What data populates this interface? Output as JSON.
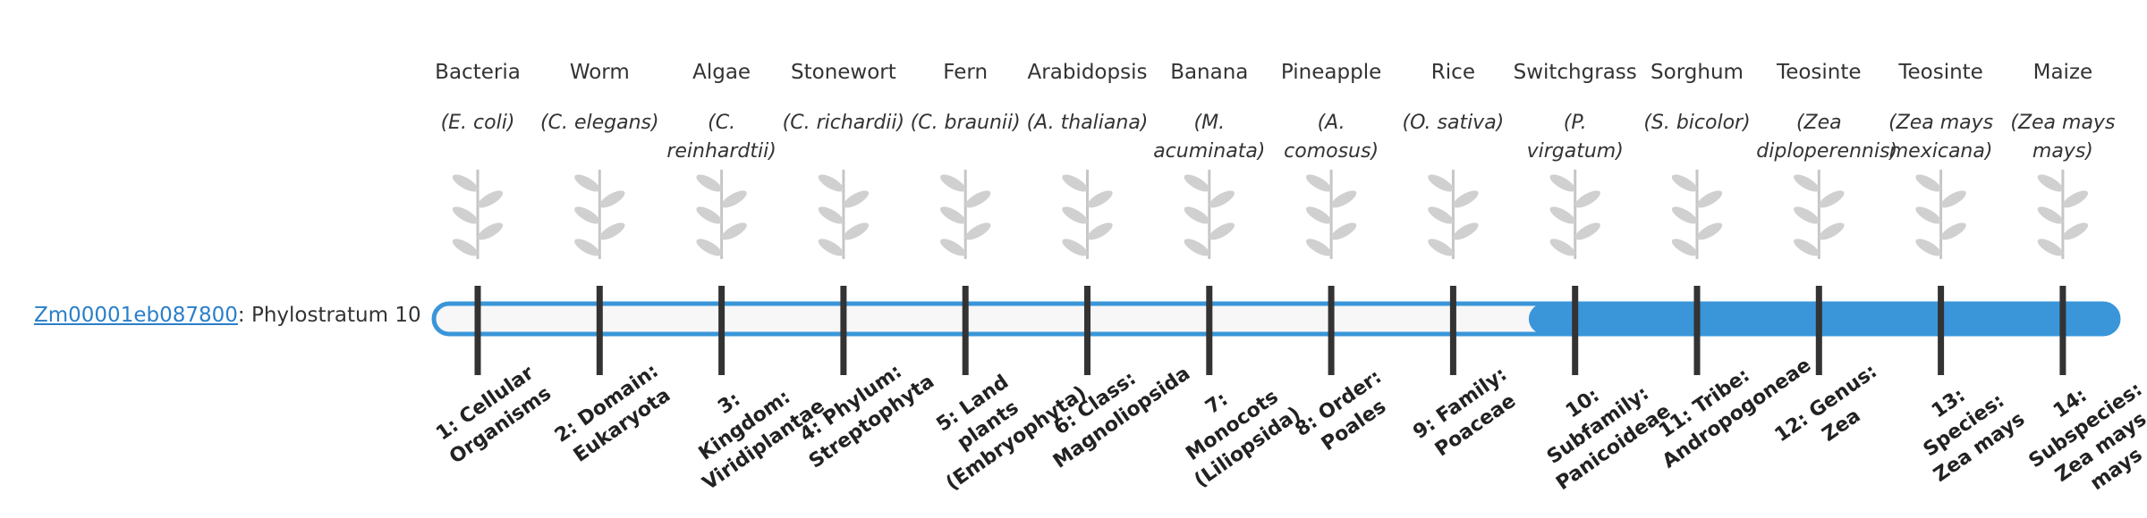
{
  "gene": {
    "id": "Zm00001eb087800",
    "label": ": Phylostratum 10",
    "active_stratum": 10
  },
  "strata": [
    {
      "common": "Bacteria",
      "scientific": "(E. coli)",
      "rank": "1: Cellular Organisms"
    },
    {
      "common": "Worm",
      "scientific": "(C. elegans)",
      "rank": "2: Domain: Eukaryota"
    },
    {
      "common": "Algae",
      "scientific": "(C. reinhardtii)",
      "rank": "3: Kingdom: Viridiplantae"
    },
    {
      "common": "Stonewort",
      "scientific": "(C. richardii)",
      "rank": "4: Phylum: Streptophyta"
    },
    {
      "common": "Fern",
      "scientific": "(C. braunii)",
      "rank": "5: Land plants (Embryophyta)"
    },
    {
      "common": "Arabidopsis",
      "scientific": "(A. thaliana)",
      "rank": "6: Class: Magnoliopsida"
    },
    {
      "common": "Banana",
      "scientific": "(M. acuminata)",
      "rank": "7: Monocots (Liliopsida)"
    },
    {
      "common": "Pineapple",
      "scientific": "(A. comosus)",
      "rank": "8: Order: Poales"
    },
    {
      "common": "Rice",
      "scientific": "(O. sativa)",
      "rank": "9: Family: Poaceae"
    },
    {
      "common": "Switchgrass",
      "scientific": "(P. virgatum)",
      "rank": "10: Subfamily: Panicoideae"
    },
    {
      "common": "Sorghum",
      "scientific": "(S. bicolor)",
      "rank": "11: Tribe: Andropogoneae"
    },
    {
      "common": "Teosinte",
      "scientific": "(Zea diploperennis)",
      "rank": "12: Genus: Zea"
    },
    {
      "common": "Teosinte",
      "scientific": "(Zea mays mexicana)",
      "rank": "13: Species: Zea mays"
    },
    {
      "common": "Maize",
      "scientific": "(Zea mays mays)",
      "rank": "14: Subspecies: Zea mays mays"
    }
  ]
}
